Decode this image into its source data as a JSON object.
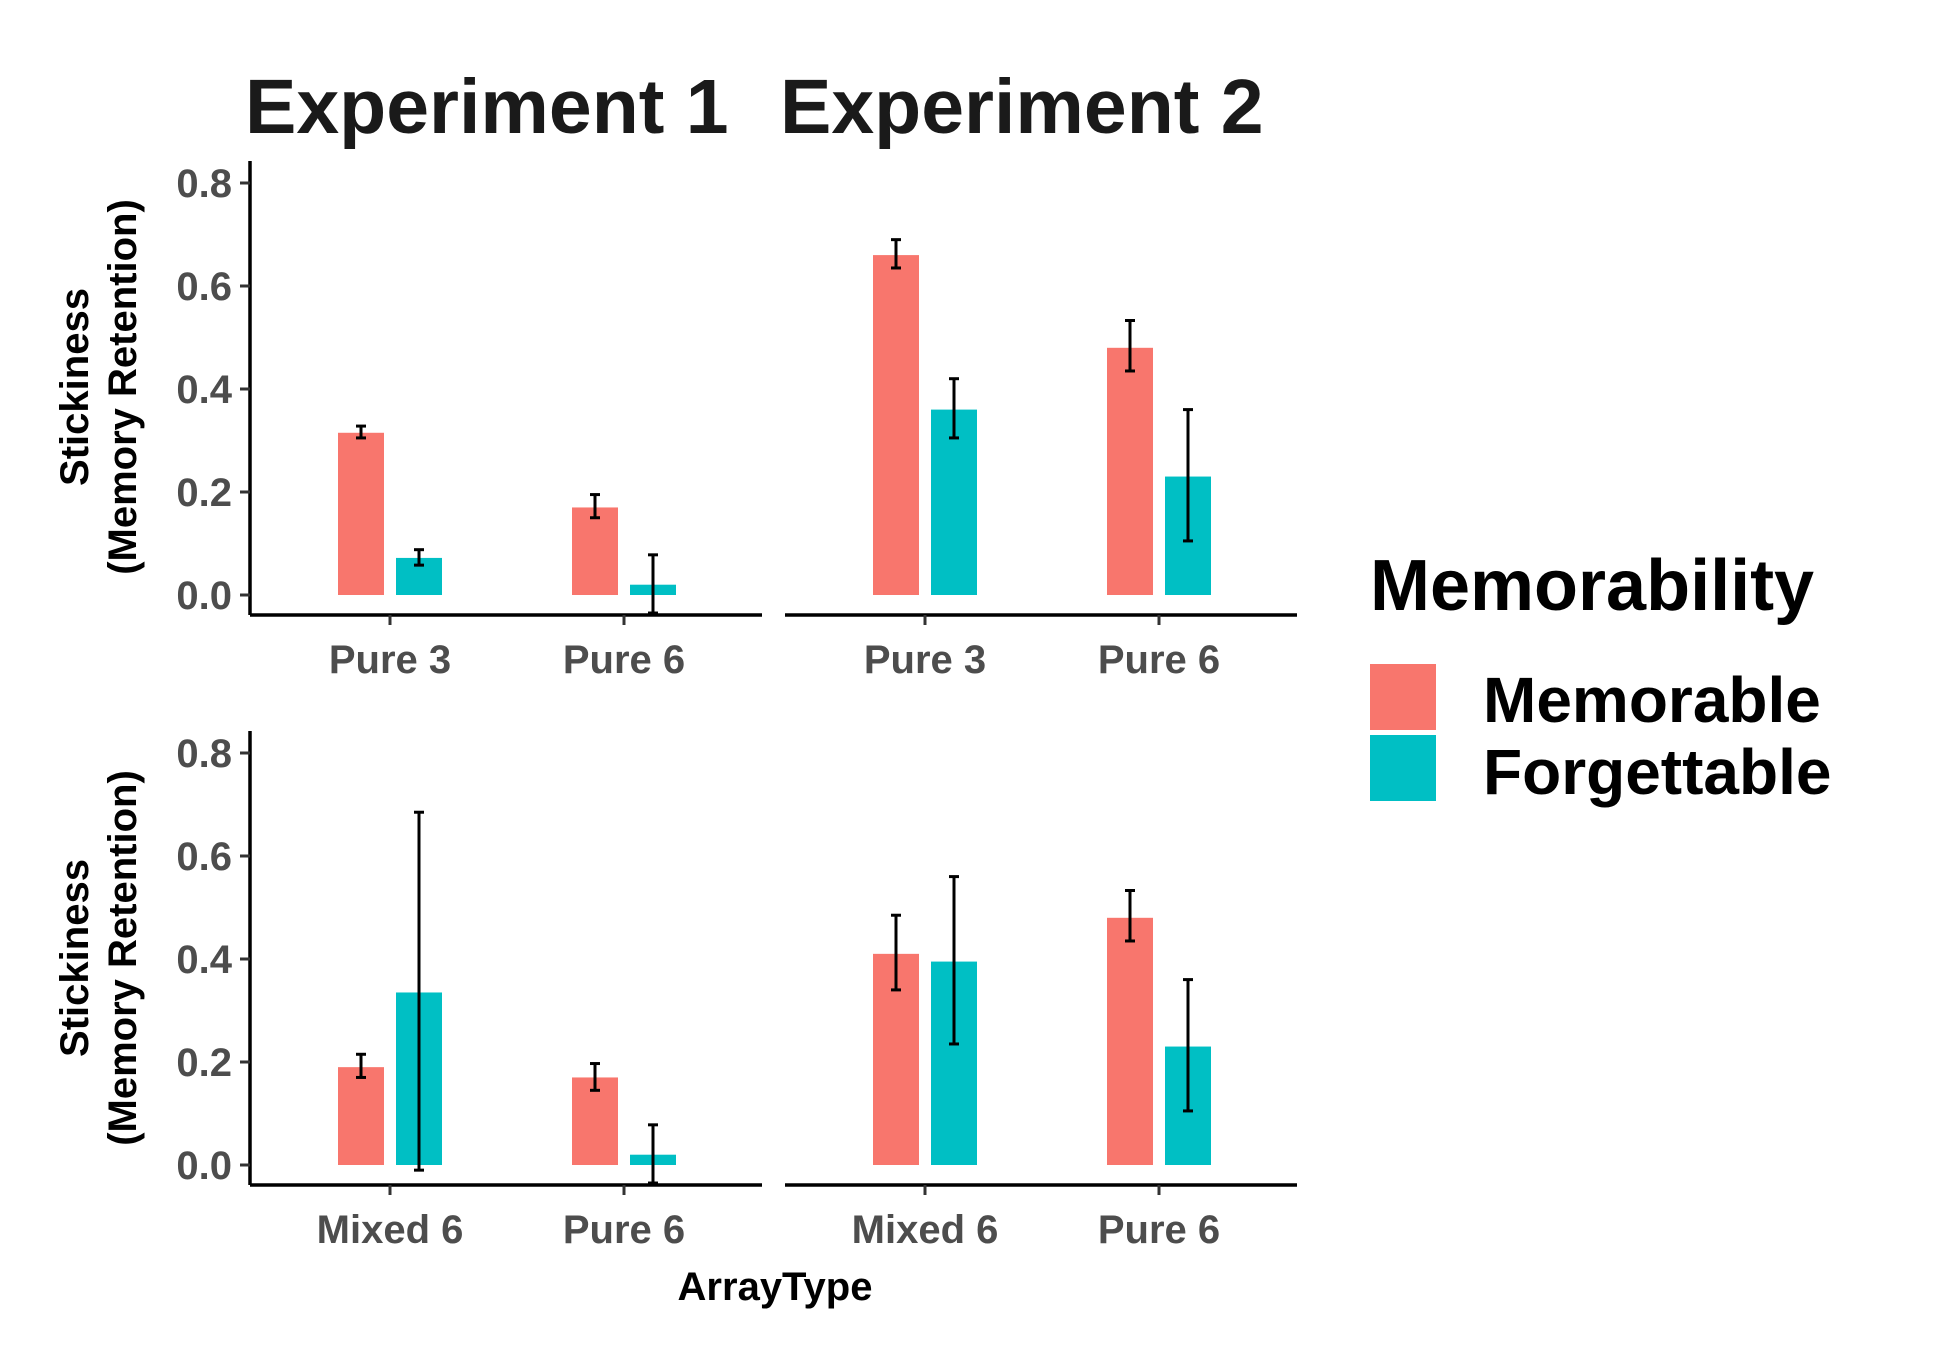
{
  "chart_data": {
    "type": "bar",
    "titles": [
      "Experiment 1",
      "Experiment 2"
    ],
    "ylabel": [
      "Stickiness",
      "(Memory Retention)"
    ],
    "xlabel": "ArrayType",
    "ylim": [
      0,
      0.8
    ],
    "yticks": [
      "0.0",
      "0.2",
      "0.4",
      "0.6",
      "0.8"
    ],
    "ytick_values": [
      0,
      0.2,
      0.4,
      0.6,
      0.8
    ],
    "legend": {
      "title": "Memorability",
      "position": "right",
      "entries": [
        {
          "label": "Memorable",
          "color": "#F8766D"
        },
        {
          "label": "Forgettable",
          "color": "#00BFC4"
        }
      ]
    },
    "series_colors": {
      "Memorable": "#F8766D",
      "Forgettable": "#00BFC4"
    },
    "panels": [
      {
        "experiment": "Experiment 1",
        "categories": [
          "Pure 3",
          "Pure 6"
        ],
        "series": [
          {
            "name": "Memorable",
            "values": [
              0.315,
              0.17
            ],
            "error_low": [
              0.305,
              0.15
            ],
            "error_high": [
              0.328,
              0.195
            ]
          },
          {
            "name": "Forgettable",
            "values": [
              0.072,
              0.02
            ],
            "error_low": [
              0.058,
              -0.035
            ],
            "error_high": [
              0.088,
              0.078
            ]
          }
        ]
      },
      {
        "experiment": "Experiment 2",
        "categories": [
          "Pure 3",
          "Pure 6"
        ],
        "series": [
          {
            "name": "Memorable",
            "values": [
              0.66,
              0.48
            ],
            "error_low": [
              0.635,
              0.435
            ],
            "error_high": [
              0.69,
              0.533
            ]
          },
          {
            "name": "Forgettable",
            "values": [
              0.36,
              0.23
            ],
            "error_low": [
              0.305,
              0.105
            ],
            "error_high": [
              0.42,
              0.36
            ]
          }
        ]
      },
      {
        "experiment": "Experiment 1",
        "categories": [
          "Mixed 6",
          "Pure 6"
        ],
        "series": [
          {
            "name": "Memorable",
            "values": [
              0.19,
              0.17
            ],
            "error_low": [
              0.17,
              0.145
            ],
            "error_high": [
              0.215,
              0.197
            ]
          },
          {
            "name": "Forgettable",
            "values": [
              0.335,
              0.02
            ],
            "error_low": [
              -0.01,
              -0.035
            ],
            "error_high": [
              0.685,
              0.078
            ]
          }
        ]
      },
      {
        "experiment": "Experiment 2",
        "categories": [
          "Mixed 6",
          "Pure 6"
        ],
        "series": [
          {
            "name": "Memorable",
            "values": [
              0.41,
              0.48
            ],
            "error_low": [
              0.34,
              0.435
            ],
            "error_high": [
              0.485,
              0.533
            ]
          },
          {
            "name": "Forgettable",
            "values": [
              0.395,
              0.23
            ],
            "error_low": [
              0.235,
              0.105
            ],
            "error_high": [
              0.56,
              0.36
            ]
          }
        ]
      }
    ]
  }
}
